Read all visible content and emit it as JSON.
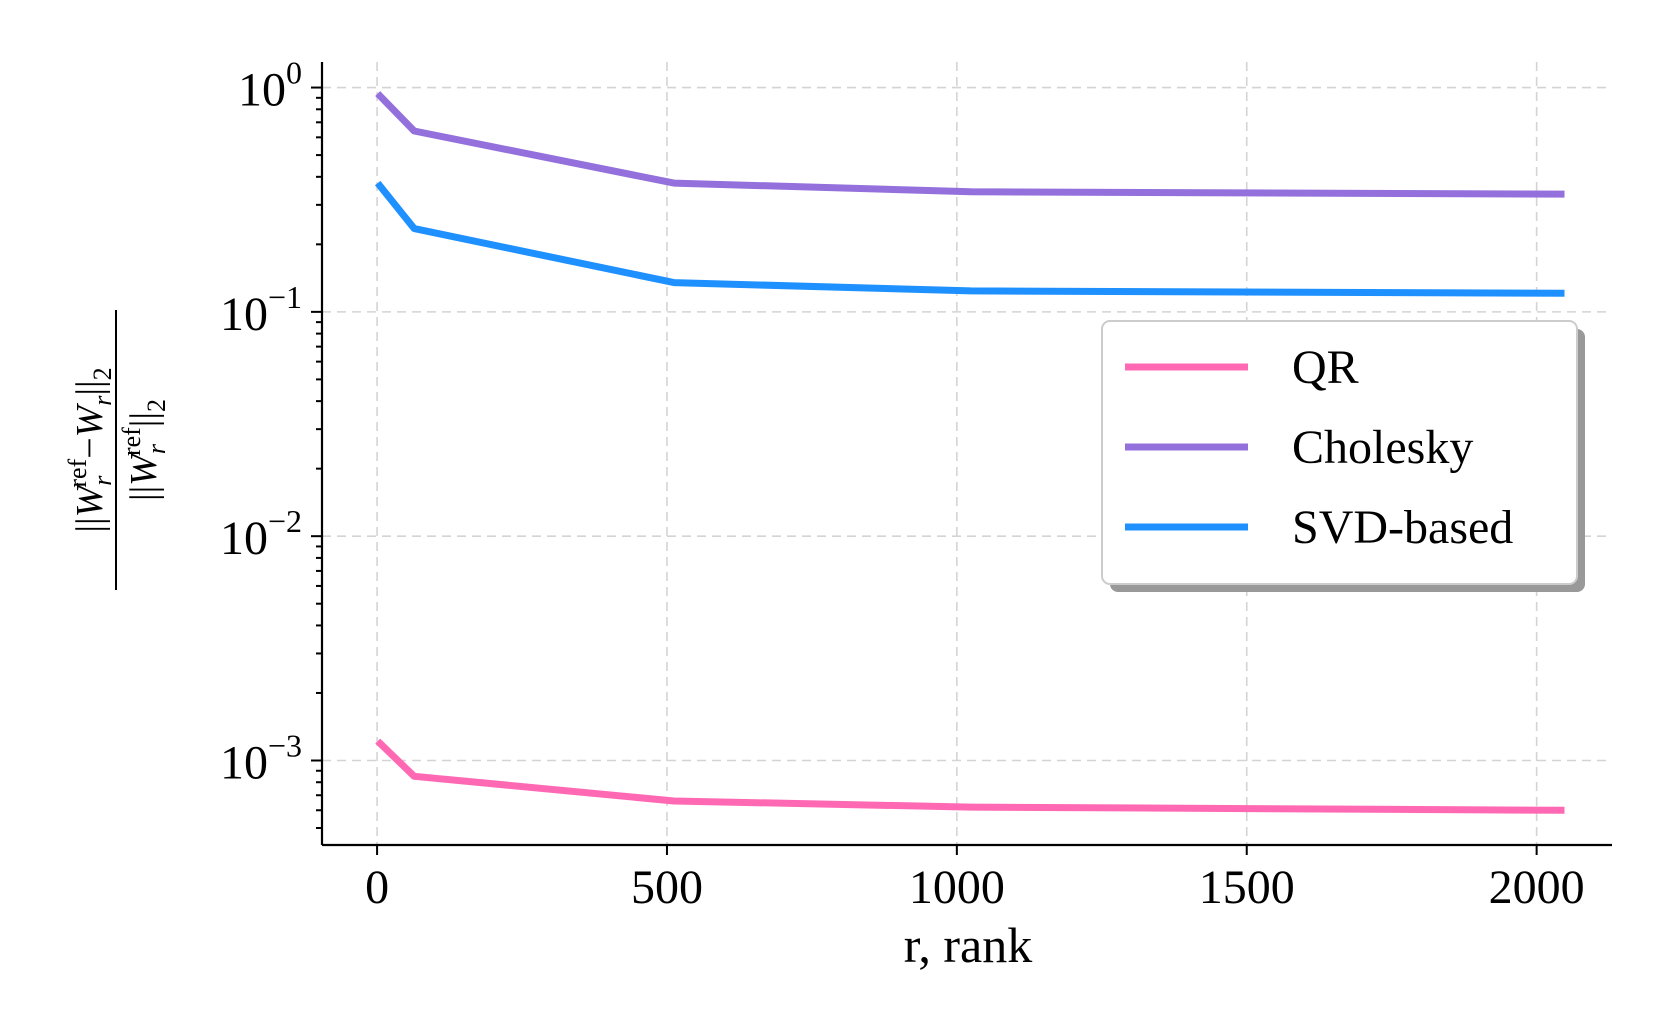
{
  "chart_data": {
    "type": "line",
    "yscale": "log",
    "xlabel": "r, rank",
    "ylabel": {
      "norm_open": "||",
      "W": "W",
      "sub_r": "r",
      "sup_ref": "ref",
      "minus": "−",
      "norm_close": "||",
      "sub_2": "2"
    },
    "xlim": [
      -95,
      2130
    ],
    "ylim": [
      0.00042,
      1.3
    ],
    "xticks": [
      {
        "value": 0,
        "label": "0"
      },
      {
        "value": 500,
        "label": "500"
      },
      {
        "value": 1000,
        "label": "1000"
      },
      {
        "value": 1500,
        "label": "1500"
      },
      {
        "value": 2000,
        "label": "2000"
      }
    ],
    "yticks": [
      {
        "value": 1,
        "base": "10",
        "exp": "0"
      },
      {
        "value": 0.1,
        "base": "10",
        "exp": "−1"
      },
      {
        "value": 0.01,
        "base": "10",
        "exp": "−2"
      },
      {
        "value": 0.001,
        "base": "10",
        "exp": "−3"
      }
    ],
    "x": [
      1,
      64,
      512,
      1024,
      2048
    ],
    "series": [
      {
        "name": "QR",
        "color": "#ff69b4",
        "values": [
          0.00122,
          0.00085,
          0.00066,
          0.00062,
          0.0006
        ]
      },
      {
        "name": "Cholesky",
        "color": "#9370db",
        "values": [
          0.94,
          0.64,
          0.375,
          0.343,
          0.335
        ]
      },
      {
        "name": "SVD-based",
        "color": "#1e90ff",
        "values": [
          0.375,
          0.235,
          0.135,
          0.124,
          0.121
        ]
      }
    ],
    "grid": true,
    "legend_position": "center-right"
  }
}
